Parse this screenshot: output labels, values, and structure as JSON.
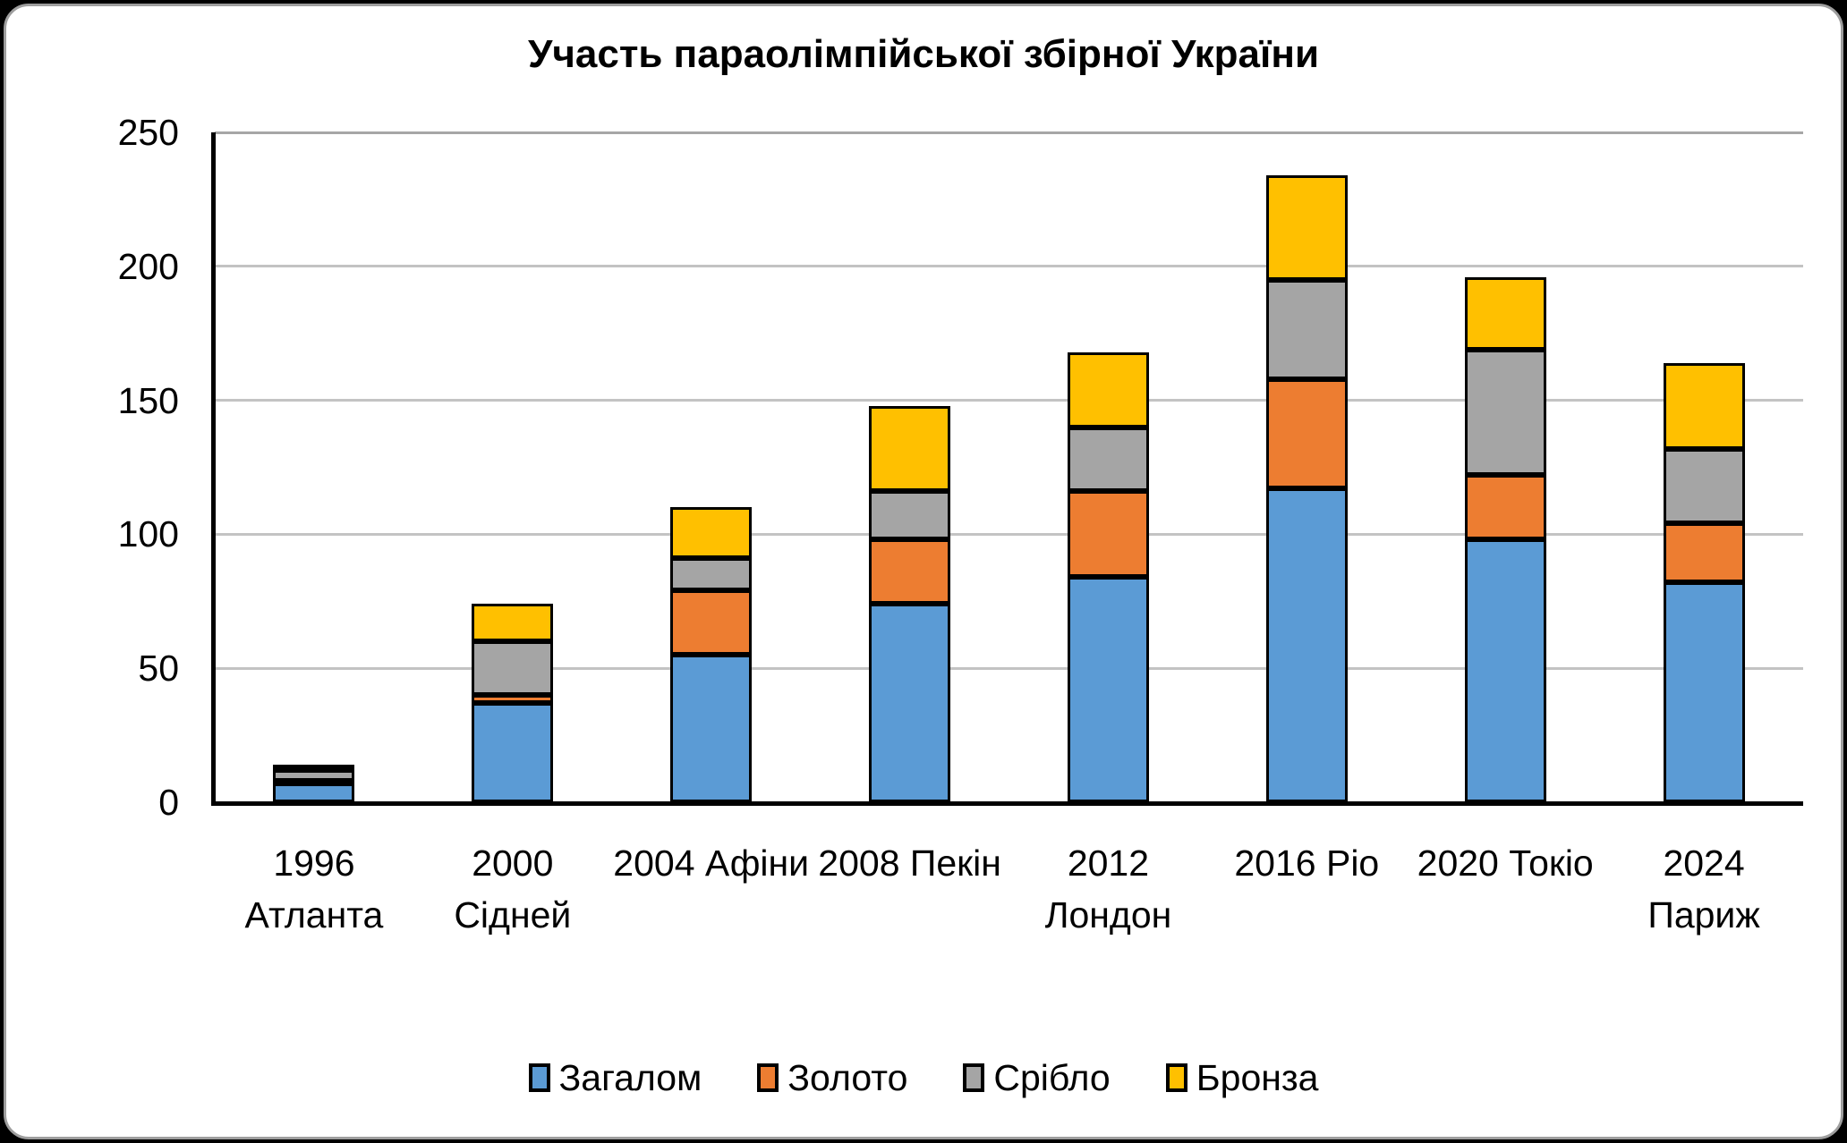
{
  "title": "Участь параолімпійської збірної України",
  "colors": {
    "total_blue": "#5B9BD5",
    "gold_orange": "#ED7D31",
    "silver_gray": "#A5A5A5",
    "bronze_yellow": "#FFC000",
    "bar_outline": "#000000",
    "axis": "#000000",
    "gridline": "#C3C3C3",
    "plot_top_frame": "#A6A6A6",
    "card_background": "#FFFFFF",
    "page_background": "#000000"
  },
  "legend": {
    "items": [
      {
        "label": "Загалом",
        "color": "#5B9BD5"
      },
      {
        "label": "Золото",
        "color": "#ED7D31"
      },
      {
        "label": "Срібло",
        "color": "#A5A5A5"
      },
      {
        "label": "Бронза",
        "color": "#FFC000"
      }
    ]
  },
  "chart_data": {
    "type": "bar",
    "stacked": true,
    "title": "Участь параолімпійської збірної України",
    "categories": [
      "1996 Атланта",
      "2000 Сідней",
      "2004 Афіни",
      "2008 Пекін",
      "2012 Лондон",
      "2016 Ріо",
      "2020 Токіо",
      "2024 Париж"
    ],
    "category_label_lines": [
      [
        "1996",
        "Атланта"
      ],
      [
        "2000",
        "Сідней"
      ],
      [
        "2004 Афіни"
      ],
      [
        "2008 Пекін"
      ],
      [
        "2012",
        "Лондон"
      ],
      [
        "2016 Ріо"
      ],
      [
        "2020 Токіо"
      ],
      [
        "2024",
        "Париж"
      ]
    ],
    "series": [
      {
        "name": "Загалом",
        "color": "#5B9BD5",
        "values": [
          7,
          37,
          55,
          74,
          84,
          117,
          98,
          82
        ]
      },
      {
        "name": "Золото",
        "color": "#ED7D31",
        "values": [
          1,
          3,
          24,
          24,
          32,
          41,
          24,
          22
        ]
      },
      {
        "name": "Срібло",
        "color": "#A5A5A5",
        "values": [
          4,
          20,
          12,
          18,
          24,
          37,
          47,
          28
        ]
      },
      {
        "name": "Бронза",
        "color": "#FFC000",
        "values": [
          2,
          14,
          19,
          32,
          28,
          39,
          27,
          32
        ]
      }
    ],
    "stack_totals": [
      14,
      74,
      110,
      148,
      168,
      234,
      196,
      164
    ],
    "xlabel": "",
    "ylabel": "",
    "ylim": [
      0,
      250
    ],
    "yticks": [
      0,
      50,
      100,
      150,
      200,
      250
    ],
    "grid": true,
    "legend_position": "bottom"
  }
}
